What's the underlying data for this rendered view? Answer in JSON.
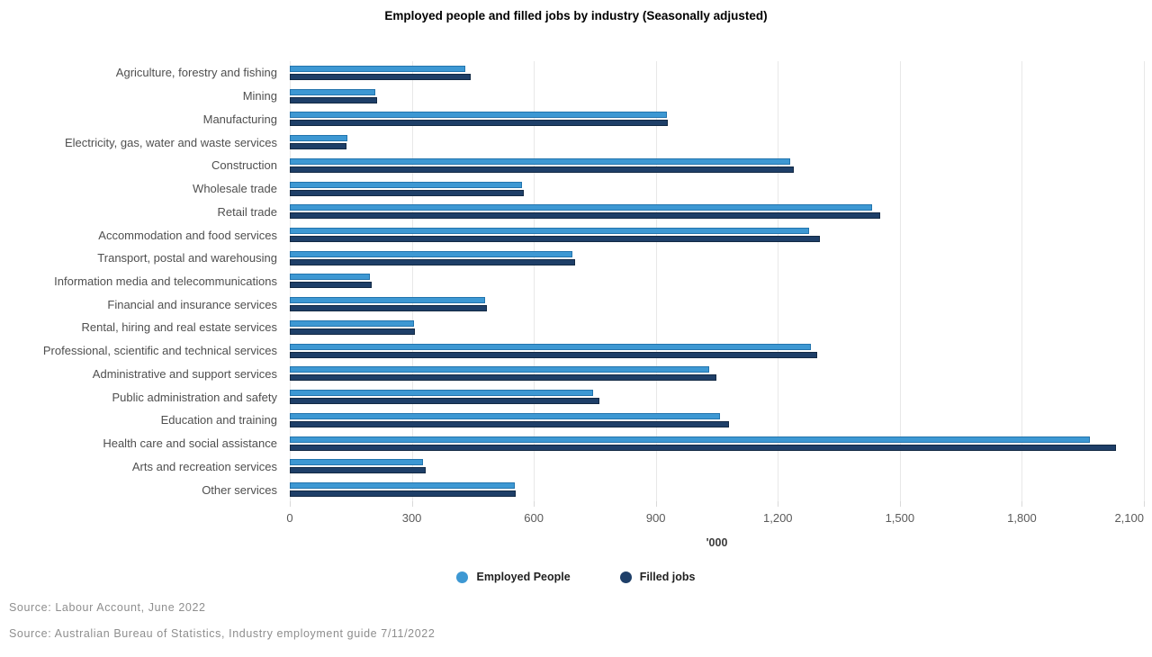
{
  "chart_data": {
    "type": "bar",
    "orientation": "horizontal",
    "title": "Employed people and filled jobs by industry (Seasonally adjusted)",
    "xlabel": "'000",
    "xlim": [
      0,
      2100
    ],
    "tick_step": 300,
    "tick_labels": [
      "0",
      "300",
      "600",
      "900",
      "1,200",
      "1,500",
      "1,800",
      "2,100"
    ],
    "grid": true,
    "legend_position": "bottom",
    "categories": [
      "Agriculture, forestry and fishing",
      "Mining",
      "Manufacturing",
      "Electricity, gas, water and waste services",
      "Construction",
      "Wholesale trade",
      "Retail trade",
      "Accommodation and food services",
      "Transport, postal and warehousing",
      "Information media and telecommunications",
      "Financial and insurance services",
      "Rental, hiring and real estate services",
      "Professional, scientific and technical services",
      "Administrative and support services",
      "Public administration and safety",
      "Education and training",
      "Health care and social assistance",
      "Arts and recreation services",
      "Other services"
    ],
    "series": [
      {
        "name": "Employed People",
        "color": "#3d98d3",
        "border_color": "#2374ad",
        "values": [
          428,
          205,
          922,
          137,
          1225,
          566,
          1428,
          1272,
          690,
          192,
          476,
          301,
          1276,
          1026,
          742,
          1054,
          1963,
          322,
          549
        ]
      },
      {
        "name": "Filled jobs",
        "color": "#1e3f68",
        "border_color": "#122944",
        "values": [
          440,
          210,
          925,
          135,
          1235,
          570,
          1447,
          1298,
          698,
          197,
          480,
          304,
          1292,
          1045,
          756,
          1075,
          2027,
          330,
          552
        ]
      }
    ]
  },
  "sources": [
    "Source: Labour Account, June 2022",
    "Source: Australian Bureau of Statistics, Industry employment guide 7/11/2022"
  ]
}
